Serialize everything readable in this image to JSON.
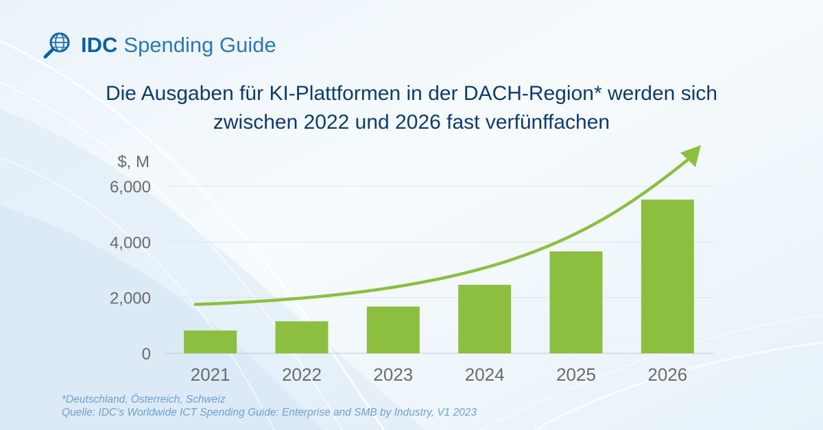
{
  "header": {
    "brand": "IDC",
    "product": "Spending Guide"
  },
  "icons": {
    "logo": "globe-magnifier-icon"
  },
  "colors": {
    "bar": "#8cbf3f",
    "arrow": "#8cbf3f",
    "title": "#0e3b6e",
    "brand": "#0c5fa5",
    "footnote": "#6fa0cc",
    "axis_text": "#6b6b6b"
  },
  "chart_data": {
    "type": "bar",
    "title": "Die Ausgaben für KI-Plattformen in der DACH-Region* werden sich zwischen 2022 und 2026 fast verfünffachen",
    "title_lines": [
      "Die Ausgaben für KI-Plattformen in der DACH-Region* werden sich",
      "zwischen 2022 und 2026 fast verfünffachen"
    ],
    "ylabel": "$, M",
    "xlabel": "",
    "categories": [
      "2021",
      "2022",
      "2023",
      "2024",
      "2025",
      "2026"
    ],
    "values": [
      820,
      1150,
      1680,
      2460,
      3660,
      5520
    ],
    "ylim": [
      0,
      6000
    ],
    "yticks": [
      0,
      2000,
      4000,
      6000
    ],
    "ytick_labels": [
      "0",
      "2,000",
      "4,000",
      "6,000"
    ],
    "grid": true,
    "trend_arrow": true
  },
  "footnotes": {
    "note": "*Deutschland, Österreich, Schweiz",
    "source": "Quelle: IDC’s Worldwide ICT Spending Guide: Enterprise and SMB by Industry, V1 2023"
  }
}
